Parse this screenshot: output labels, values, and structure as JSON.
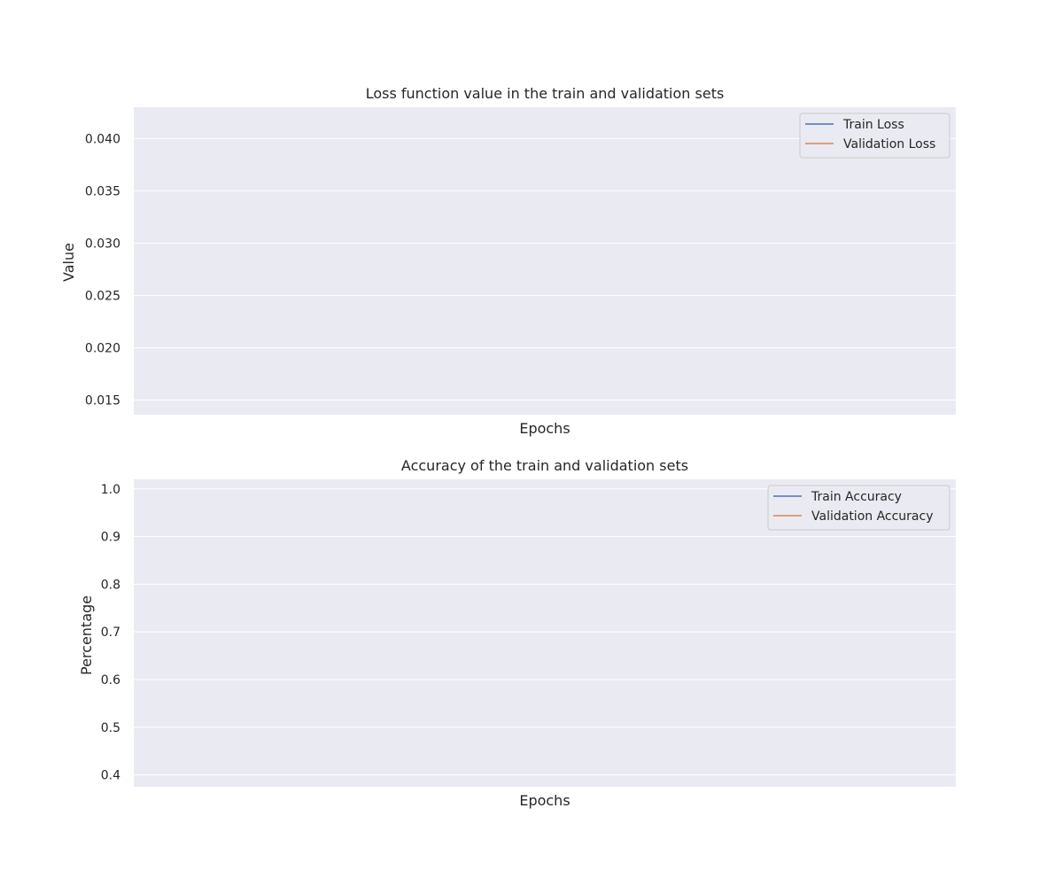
{
  "chart_data": [
    {
      "type": "line",
      "title": "Loss function value in the train and validation sets",
      "xlabel": "Epochs",
      "ylabel": "Value",
      "ylim": [
        0.0136,
        0.043
      ],
      "yticks": [
        0.015,
        0.02,
        0.025,
        0.03,
        0.035,
        0.04
      ],
      "ytick_labels": [
        "0.015",
        "0.020",
        "0.025",
        "0.030",
        "0.035",
        "0.040"
      ],
      "xticks_visible": false,
      "grid": true,
      "legend_position": "top-right",
      "series": [
        {
          "name": "Train Loss",
          "color": "#4c72b0",
          "values": []
        },
        {
          "name": "Validation Loss",
          "color": "#dd8452",
          "values": []
        }
      ]
    },
    {
      "type": "line",
      "title": "Accuracy of the train and validation sets",
      "xlabel": "Epochs",
      "ylabel": "Percentage",
      "ylim": [
        0.375,
        1.02
      ],
      "yticks": [
        0.4,
        0.5,
        0.6,
        0.7,
        0.8,
        0.9,
        1.0
      ],
      "ytick_labels": [
        "0.4",
        "0.5",
        "0.6",
        "0.7",
        "0.8",
        "0.9",
        "1.0"
      ],
      "xticks_visible": false,
      "grid": true,
      "legend_position": "top-right",
      "series": [
        {
          "name": "Train Accuracy",
          "color": "#4c72b0",
          "values": []
        },
        {
          "name": "Validation Accuracy",
          "color": "#dd8452",
          "values": []
        }
      ]
    }
  ]
}
